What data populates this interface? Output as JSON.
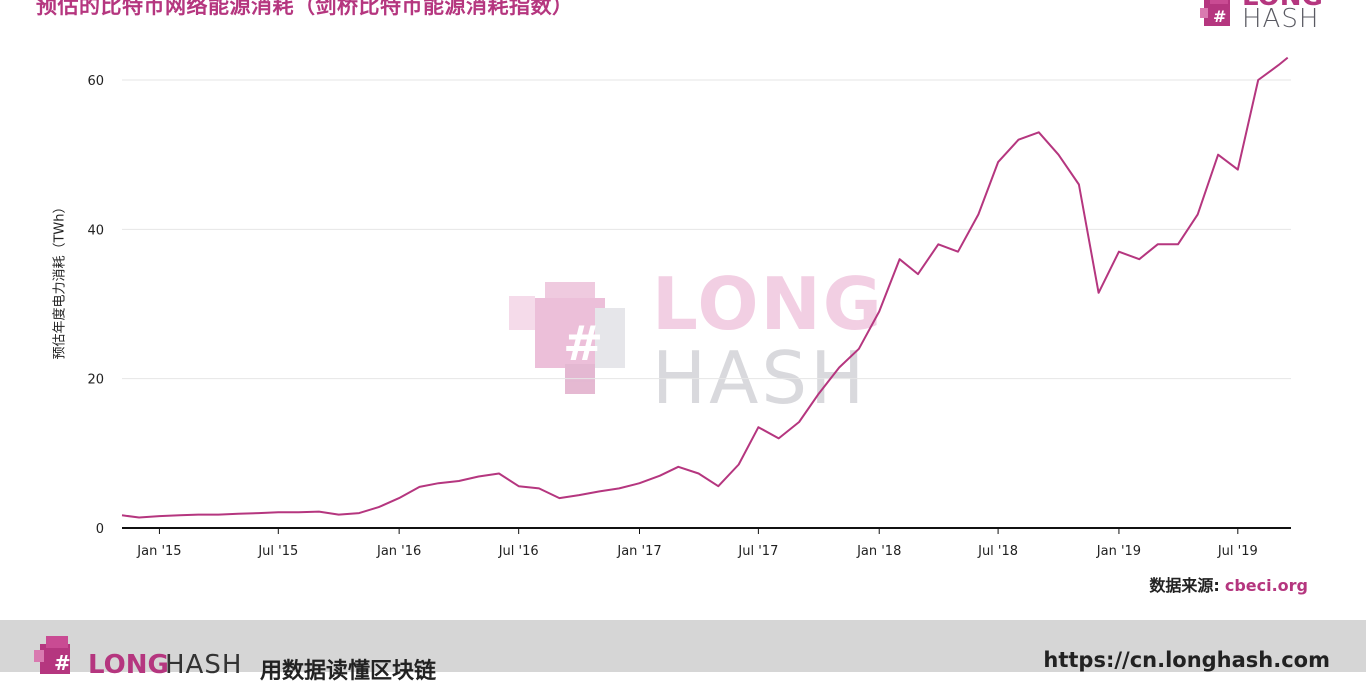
{
  "title": "预估的比特币网络能源消耗（剑桥比特币能源消耗指数）",
  "logo": {
    "long": "LONG",
    "hash": "HASH"
  },
  "source": {
    "label": "数据来源:",
    "link": "cbeci.org"
  },
  "footer": {
    "long": "LONG",
    "hash": "HASH",
    "slogan": "用数据读懂区块链",
    "url": "https://cn.longhash.com"
  },
  "colors": {
    "line": "#b5367f",
    "accent": "#b5367f",
    "footer_bg": "#d6d6d6",
    "grid": "#e6e6e6"
  },
  "chart_data": {
    "type": "line",
    "title": "预估的比特币网络能源消耗（剑桥比特币能源消耗指数）",
    "xlabel": "",
    "ylabel": "预估年度电力消耗（TWh）",
    "ylim": [
      0,
      60
    ],
    "yticks": [
      0,
      20,
      40,
      60
    ],
    "xlim": [
      "2014-11-05",
      "2019-09-20"
    ],
    "xtick_labels": [
      {
        "date": "2015-01-01",
        "label": "Jan '15"
      },
      {
        "date": "2015-07-01",
        "label": "Jul '15"
      },
      {
        "date": "2016-01-01",
        "label": "Jan '16"
      },
      {
        "date": "2016-07-01",
        "label": "Jul '16"
      },
      {
        "date": "2017-01-01",
        "label": "Jan '17"
      },
      {
        "date": "2017-07-01",
        "label": "Jul '17"
      },
      {
        "date": "2018-01-01",
        "label": "Jan '18"
      },
      {
        "date": "2018-07-01",
        "label": "Jul '18"
      },
      {
        "date": "2019-01-01",
        "label": "Jan '19"
      },
      {
        "date": "2019-07-01",
        "label": "Jul '19"
      }
    ],
    "grid": true,
    "legend": "none",
    "series": [
      {
        "x": [
          "2014-11-05",
          "2014-12-01",
          "2015-01-01",
          "2015-02-01",
          "2015-03-01",
          "2015-04-01",
          "2015-05-01",
          "2015-06-01",
          "2015-07-01",
          "2015-08-01",
          "2015-09-01",
          "2015-10-01",
          "2015-11-01",
          "2015-12-01",
          "2016-01-01",
          "2016-02-01",
          "2016-03-01",
          "2016-04-01",
          "2016-05-01",
          "2016-06-01",
          "2016-07-01",
          "2016-08-01",
          "2016-09-01",
          "2016-10-01",
          "2016-11-01",
          "2016-12-01",
          "2017-01-01",
          "2017-02-01",
          "2017-03-01",
          "2017-04-01",
          "2017-05-01",
          "2017-06-01",
          "2017-07-01",
          "2017-08-01",
          "2017-09-01",
          "2017-10-01",
          "2017-11-01",
          "2017-12-01",
          "2018-01-01",
          "2018-02-01",
          "2018-03-01",
          "2018-04-01",
          "2018-05-01",
          "2018-06-01",
          "2018-07-01",
          "2018-08-01",
          "2018-09-01",
          "2018-10-01",
          "2018-11-01",
          "2018-12-01",
          "2019-01-01",
          "2019-02-01",
          "2019-03-01",
          "2019-04-01",
          "2019-05-01",
          "2019-06-01",
          "2019-07-01",
          "2019-08-01",
          "2019-09-01",
          "2019-09-15"
        ],
        "y": [
          1.7,
          1.4,
          1.6,
          1.7,
          1.8,
          1.8,
          1.9,
          2.0,
          2.1,
          2.1,
          2.2,
          1.8,
          2.0,
          2.8,
          4.0,
          5.5,
          6.0,
          6.3,
          6.9,
          7.3,
          5.6,
          5.3,
          4.0,
          4.4,
          4.9,
          5.3,
          6.0,
          7.0,
          8.2,
          7.3,
          5.6,
          8.5,
          13.5,
          12.0,
          14.2,
          18.0,
          21.5,
          24.0,
          29.0,
          36.0,
          34.0,
          38.0,
          37.0,
          42.0,
          49.0,
          52.0,
          53.0,
          50.0,
          46.0,
          31.5,
          37.0,
          36.0,
          38.0,
          38.0,
          42.0,
          50.0,
          48.0,
          60.0,
          62.0,
          63.0
        ]
      }
    ]
  }
}
